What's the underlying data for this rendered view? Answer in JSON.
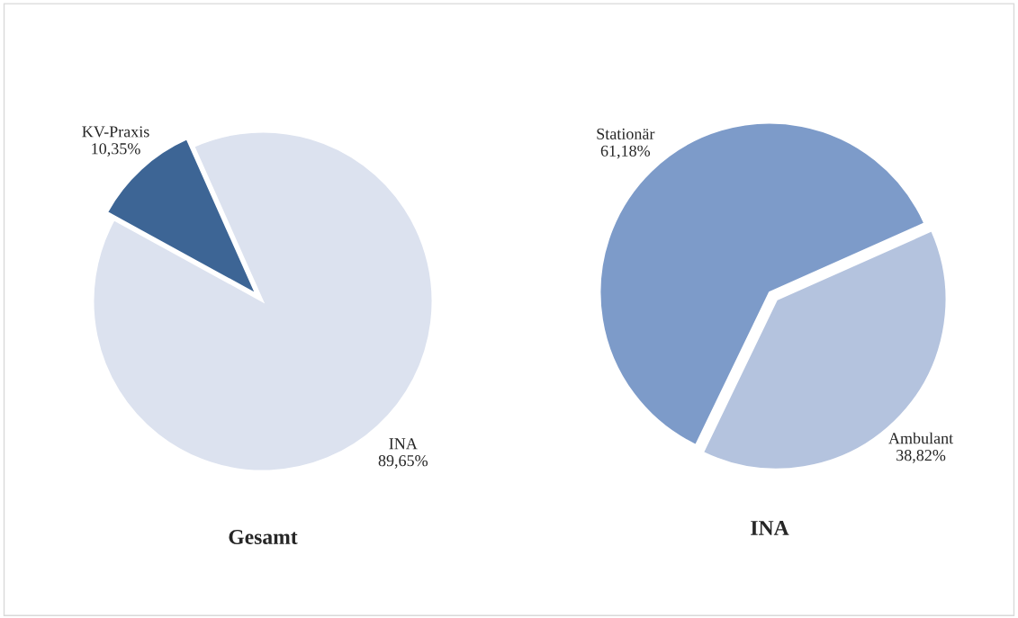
{
  "chart_data": [
    {
      "type": "pie",
      "title": "Gesamt",
      "categories": [
        "KV-Praxis",
        "INA"
      ],
      "values": [
        10.35,
        89.65
      ],
      "value_labels": [
        "10,35%",
        "89,65%"
      ],
      "colors": [
        "#3d6595",
        "#dce2ef"
      ]
    },
    {
      "type": "pie",
      "title": "INA",
      "categories": [
        "Stationär",
        "Ambulant"
      ],
      "values": [
        61.18,
        38.82
      ],
      "value_labels": [
        "61,18%",
        "38,82%"
      ],
      "colors": [
        "#7d9bc9",
        "#b4c3de"
      ]
    }
  ]
}
